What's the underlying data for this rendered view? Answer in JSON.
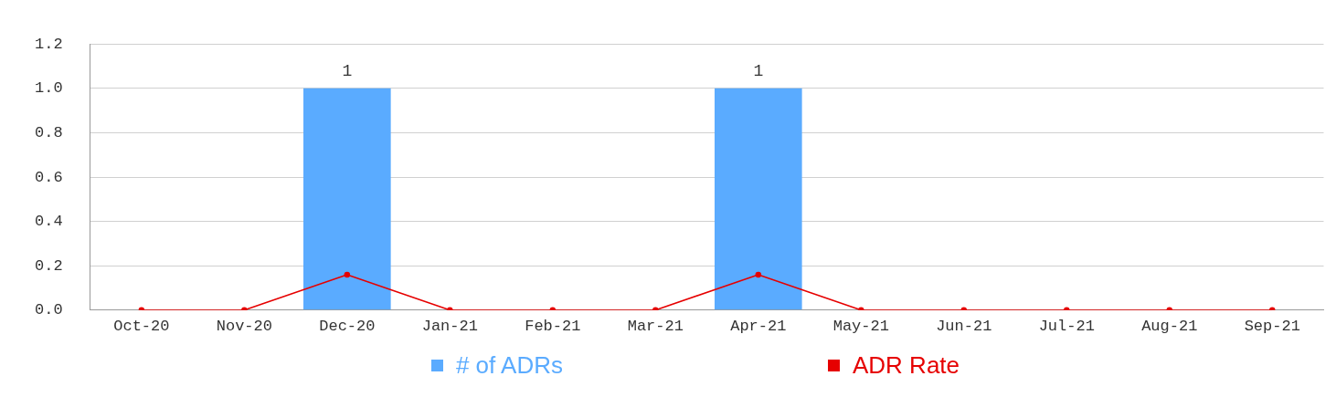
{
  "chart_data": {
    "type": "bar",
    "categories": [
      "Oct-20",
      "Nov-20",
      "Dec-20",
      "Jan-21",
      "Feb-21",
      "Mar-21",
      "Apr-21",
      "May-21",
      "Jun-21",
      "Jul-21",
      "Aug-21",
      "Sep-21"
    ],
    "series": [
      {
        "name": "# of ADRs",
        "color": "#5aabff",
        "values": [
          0,
          0,
          1,
          0,
          0,
          0,
          1,
          0,
          0,
          0,
          0,
          0
        ],
        "value_labels": [
          null,
          null,
          "1",
          null,
          null,
          null,
          "1",
          null,
          null,
          null,
          null,
          null
        ]
      },
      {
        "name": "ADR Rate",
        "type": "line",
        "color": "#e60000",
        "marker": "circle",
        "values": [
          0,
          0,
          0.16,
          0,
          0,
          0,
          0.16,
          0,
          0,
          0,
          0,
          0
        ]
      }
    ],
    "ylim": [
      0,
      1.2
    ],
    "yticks": [
      {
        "value": 0,
        "label": "0.0"
      },
      0.2,
      0.4,
      0.6,
      0.8,
      {
        "value": 1,
        "label": "1.0"
      },
      1.2
    ],
    "grid": "y",
    "legend": "bottom"
  }
}
